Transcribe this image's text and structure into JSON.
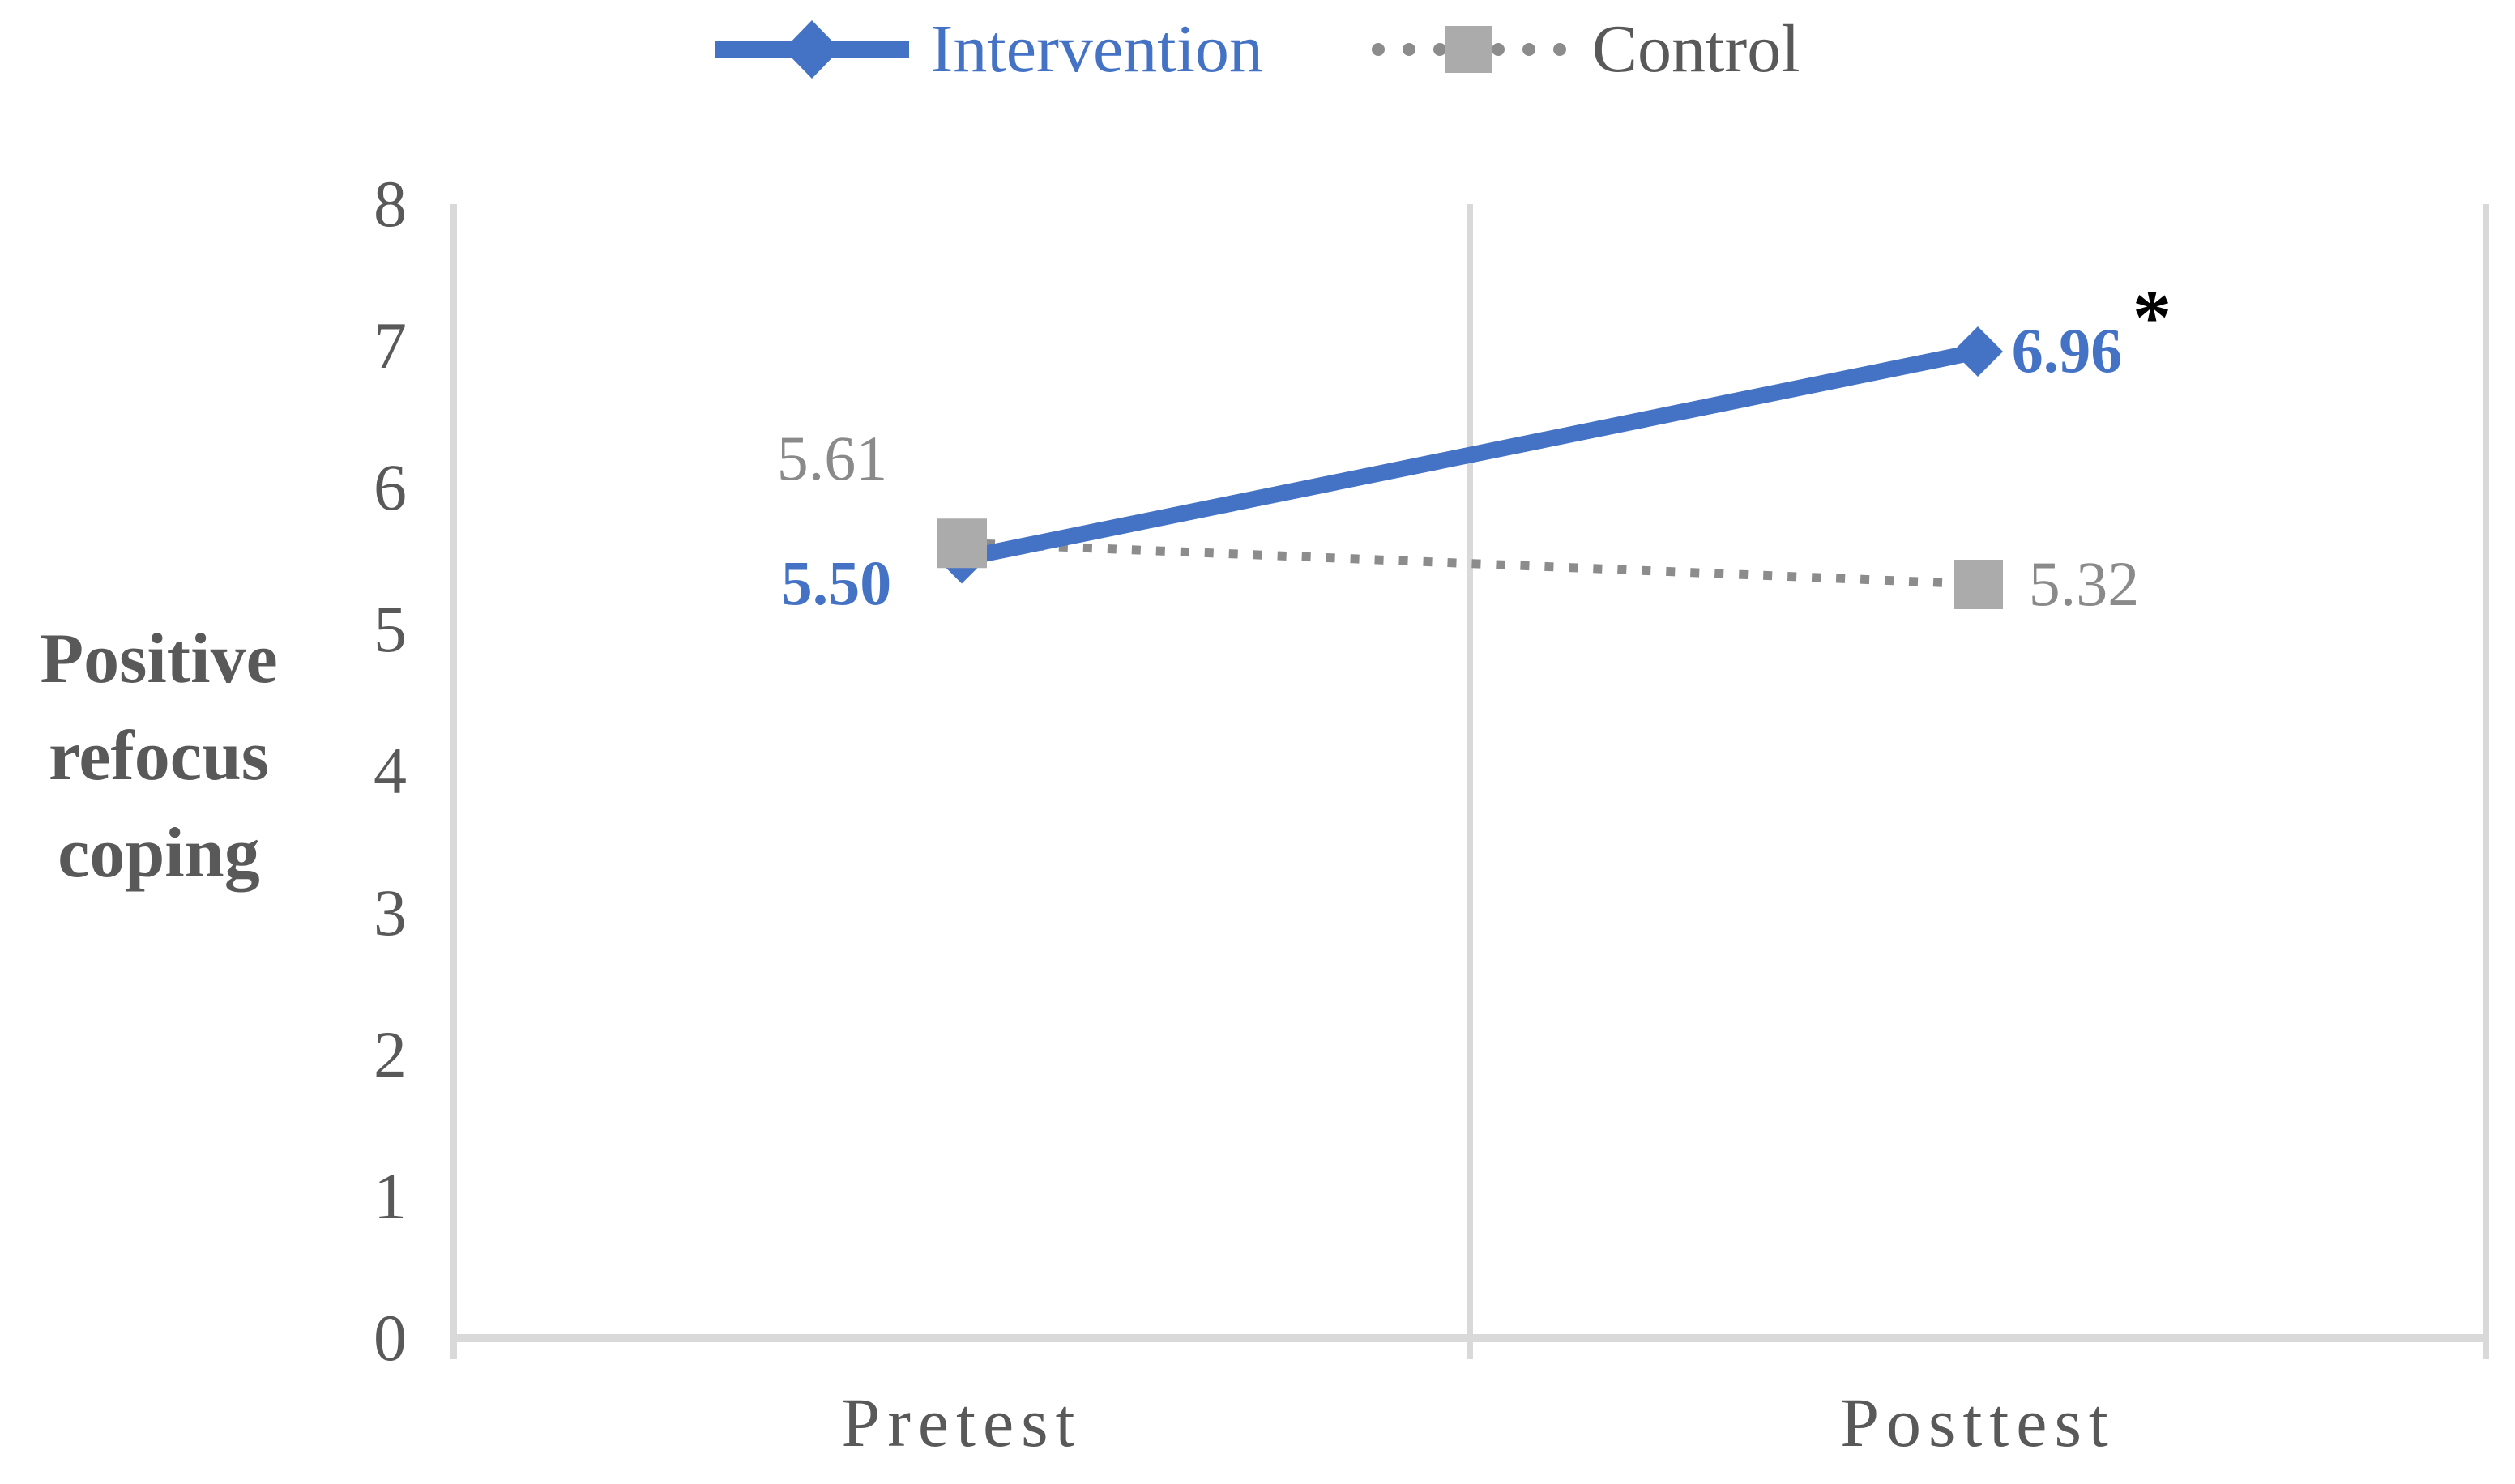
{
  "legend": [
    {
      "label": "Intervention",
      "text_color": "#4472C4"
    },
    {
      "label": "Control",
      "text_color": "#595959"
    }
  ],
  "chart_data": {
    "type": "line",
    "categories": [
      "Pretest",
      "Posttest"
    ],
    "series": [
      {
        "name": "Intervention",
        "values": [
          5.5,
          6.96
        ],
        "labels": [
          "5.50",
          "6.96"
        ],
        "color": "#4472C4",
        "marker": "diamond",
        "line_style": "solid"
      },
      {
        "name": "Control",
        "values": [
          5.61,
          5.32
        ],
        "labels": [
          "5.61",
          "5.32"
        ],
        "color": "#8C8C8C",
        "marker_color": "#ABABAB",
        "marker": "square",
        "line_style": "dotted"
      }
    ],
    "ylabel": "Positive refocus coping",
    "ylabel_lines": [
      "Positive",
      "refocus",
      "coping"
    ],
    "xlabel": "",
    "yticks": [
      "0",
      "1",
      "2",
      "3",
      "4",
      "5",
      "6",
      "7",
      "8"
    ],
    "ylim": [
      0,
      8
    ],
    "significance_marker": "*",
    "significance_on": "Intervention Posttest",
    "grid": "vertical category boundaries only",
    "legend_position": "top-center",
    "axis_line_color": "#D9D9D9",
    "tick_text_color": "#595959"
  }
}
